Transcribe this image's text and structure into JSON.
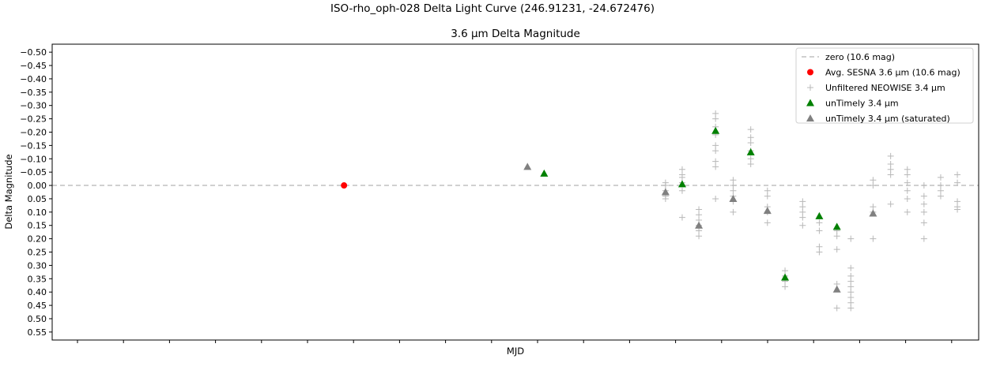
{
  "figure": {
    "suptitle": "ISO-rho_oph-028 Delta Light Curve (246.91231, -24.672476)",
    "title": "3.6 μm Delta Magnitude"
  },
  "chart_data": {
    "type": "scatter",
    "title": "3.6 μm Delta Magnitude",
    "xlabel": "MJD",
    "ylabel": "Delta Magnitude",
    "x_tick_labels_shown": false,
    "x_tick_count": 20,
    "xlim": [
      0,
      100
    ],
    "ylim": [
      0.58,
      -0.53
    ],
    "y_inverted": true,
    "yticks": [
      -0.5,
      -0.45,
      -0.4,
      -0.35,
      -0.3,
      -0.25,
      -0.2,
      -0.15,
      -0.1,
      -0.05,
      0.0,
      0.05,
      0.1,
      0.15,
      0.2,
      0.25,
      0.3,
      0.35,
      0.4,
      0.45,
      0.5,
      0.55
    ],
    "ytick_labels": [
      "−0.50",
      "−0.45",
      "−0.40",
      "−0.35",
      "−0.30",
      "−0.25",
      "−0.20",
      "−0.15",
      "−0.10",
      "−0.05",
      "0.00",
      "0.05",
      "0.10",
      "0.15",
      "0.20",
      "0.25",
      "0.30",
      "0.35",
      "0.40",
      "0.45",
      "0.50",
      "0.55"
    ],
    "grid": false,
    "legend_placement": "top-right",
    "series": [
      {
        "name": "zero (10.6 mag)",
        "kind": "hline",
        "y": 0.0,
        "color": "#c0c0c0",
        "style": "dashed"
      },
      {
        "name": "Avg. SESNA 3.6 μm (10.6 mag)",
        "kind": "circle",
        "color": "#ff0000",
        "points": [
          [
            31.5,
            0.0
          ]
        ]
      },
      {
        "name": "Unfiltered NEOWISE 3.4 μm",
        "kind": "plus",
        "color": "#b8b8b8",
        "points": [
          [
            66.2,
            -0.01
          ],
          [
            66.2,
            0.0
          ],
          [
            66.2,
            0.02
          ],
          [
            66.2,
            0.04
          ],
          [
            66.2,
            0.05
          ],
          [
            66.2,
            0.03
          ],
          [
            68.0,
            -0.06
          ],
          [
            68.0,
            -0.04
          ],
          [
            68.0,
            -0.01
          ],
          [
            68.0,
            0.02
          ],
          [
            68.0,
            0.12
          ],
          [
            68.0,
            -0.03
          ],
          [
            69.8,
            0.09
          ],
          [
            69.8,
            0.11
          ],
          [
            69.8,
            0.13
          ],
          [
            69.8,
            0.15
          ],
          [
            69.8,
            0.17
          ],
          [
            69.8,
            0.19
          ],
          [
            71.6,
            -0.27
          ],
          [
            71.6,
            -0.25
          ],
          [
            71.6,
            -0.22
          ],
          [
            71.6,
            -0.19
          ],
          [
            71.6,
            -0.15
          ],
          [
            71.6,
            -0.13
          ],
          [
            71.6,
            -0.09
          ],
          [
            71.6,
            -0.07
          ],
          [
            71.6,
            0.05
          ],
          [
            73.5,
            -0.02
          ],
          [
            73.5,
            0.0
          ],
          [
            73.5,
            0.02
          ],
          [
            73.5,
            0.04
          ],
          [
            73.5,
            0.06
          ],
          [
            73.5,
            0.1
          ],
          [
            75.4,
            -0.21
          ],
          [
            75.4,
            -0.18
          ],
          [
            75.4,
            -0.16
          ],
          [
            75.4,
            -0.13
          ],
          [
            75.4,
            -0.1
          ],
          [
            75.4,
            -0.08
          ],
          [
            77.2,
            0.02
          ],
          [
            77.2,
            0.04
          ],
          [
            77.2,
            0.08
          ],
          [
            77.2,
            0.1
          ],
          [
            77.2,
            0.14
          ],
          [
            79.1,
            0.32
          ],
          [
            79.1,
            0.34
          ],
          [
            79.1,
            0.36
          ],
          [
            79.1,
            0.38
          ],
          [
            81.0,
            0.06
          ],
          [
            81.0,
            0.08
          ],
          [
            81.0,
            0.1
          ],
          [
            81.0,
            0.12
          ],
          [
            81.0,
            0.15
          ],
          [
            82.8,
            0.14
          ],
          [
            82.8,
            0.17
          ],
          [
            82.8,
            0.23
          ],
          [
            82.8,
            0.25
          ],
          [
            84.7,
            0.17
          ],
          [
            84.7,
            0.19
          ],
          [
            84.7,
            0.24
          ],
          [
            84.7,
            0.37
          ],
          [
            84.7,
            0.46
          ],
          [
            86.2,
            0.2
          ],
          [
            86.2,
            0.31
          ],
          [
            86.2,
            0.34
          ],
          [
            86.2,
            0.36
          ],
          [
            86.2,
            0.38
          ],
          [
            86.2,
            0.4
          ],
          [
            86.2,
            0.42
          ],
          [
            86.2,
            0.44
          ],
          [
            86.2,
            0.46
          ],
          [
            88.6,
            -0.02
          ],
          [
            88.6,
            0.0
          ],
          [
            88.6,
            0.08
          ],
          [
            88.6,
            0.1
          ],
          [
            88.6,
            0.2
          ],
          [
            90.5,
            -0.11
          ],
          [
            90.5,
            -0.08
          ],
          [
            90.5,
            -0.06
          ],
          [
            90.5,
            -0.04
          ],
          [
            90.5,
            0.07
          ],
          [
            92.3,
            -0.06
          ],
          [
            92.3,
            -0.04
          ],
          [
            92.3,
            -0.01
          ],
          [
            92.3,
            0.02
          ],
          [
            92.3,
            0.05
          ],
          [
            92.3,
            0.1
          ],
          [
            94.1,
            0.04
          ],
          [
            94.1,
            0.07
          ],
          [
            94.1,
            0.1
          ],
          [
            94.1,
            0.14
          ],
          [
            94.1,
            0.2
          ],
          [
            94.1,
            0.0
          ],
          [
            95.9,
            -0.03
          ],
          [
            95.9,
            0.0
          ],
          [
            95.9,
            0.02
          ],
          [
            95.9,
            0.04
          ],
          [
            97.7,
            -0.04
          ],
          [
            97.7,
            -0.01
          ],
          [
            97.7,
            0.06
          ],
          [
            97.7,
            0.08
          ],
          [
            97.7,
            0.09
          ]
        ]
      },
      {
        "name": "unTimely 3.4 μm",
        "kind": "triangle",
        "color": "#008000",
        "points": [
          [
            53.1,
            -0.045
          ],
          [
            68.0,
            -0.005
          ],
          [
            71.6,
            -0.205
          ],
          [
            75.4,
            -0.125
          ],
          [
            79.1,
            0.345
          ],
          [
            82.8,
            0.115
          ],
          [
            84.7,
            0.155
          ]
        ]
      },
      {
        "name": "unTimely 3.4 μm (saturated)",
        "kind": "triangle",
        "color": "#808080",
        "points": [
          [
            51.3,
            -0.07
          ],
          [
            66.2,
            0.025
          ],
          [
            69.8,
            0.15
          ],
          [
            73.5,
            0.05
          ],
          [
            77.2,
            0.095
          ],
          [
            84.7,
            0.39
          ],
          [
            88.6,
            0.105
          ]
        ]
      }
    ]
  }
}
